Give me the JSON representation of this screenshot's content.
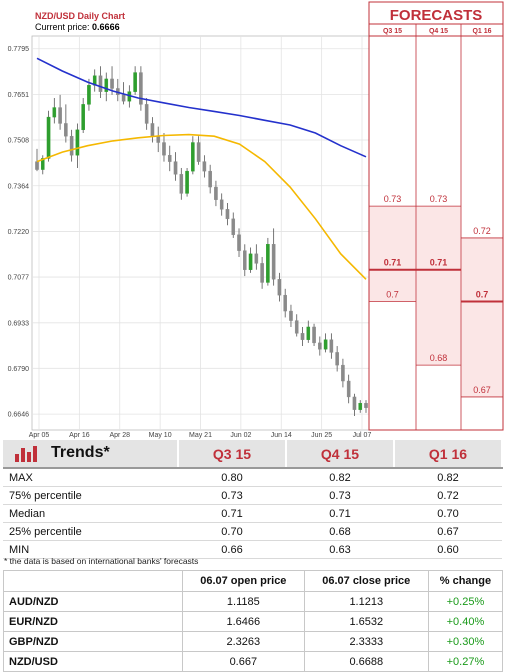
{
  "header": {
    "title": "NZD/USD Daily Chart",
    "price_label": "Current price:",
    "price_value": "0.6666"
  },
  "forecast_panel": {
    "title": "FORECASTS",
    "columns": [
      "Q3 15",
      "Q4 15",
      "Q1 16"
    ],
    "labels": [
      {
        "col": 0,
        "value": 0.73,
        "text": "0.73",
        "median": false
      },
      {
        "col": 0,
        "value": 0.71,
        "text": "0.71",
        "median": true
      },
      {
        "col": 0,
        "value": 0.7,
        "text": "0.7",
        "median": false
      },
      {
        "col": 1,
        "value": 0.73,
        "text": "0.73",
        "median": false
      },
      {
        "col": 1,
        "value": 0.71,
        "text": "0.71",
        "median": true
      },
      {
        "col": 1,
        "value": 0.68,
        "text": "0.68",
        "median": false
      },
      {
        "col": 2,
        "value": 0.72,
        "text": "0.72",
        "median": false
      },
      {
        "col": 2,
        "value": 0.7,
        "text": "0.7",
        "median": true
      },
      {
        "col": 2,
        "value": 0.67,
        "text": "0.67",
        "median": false
      }
    ]
  },
  "chart_data": {
    "type": "candlestick",
    "y_ticks": [
      "0.7795",
      "0.7651",
      "0.7508",
      "0.7364",
      "0.7220",
      "0.7077",
      "0.6933",
      "0.6790",
      "0.6646"
    ],
    "ylim": [
      0.6596,
      0.7835
    ],
    "x_ticks": [
      "Apr 05",
      "Apr 16",
      "Apr 28",
      "May 10",
      "May 21",
      "Jun 02",
      "Jun 14",
      "Jun 25",
      "Jul 07"
    ],
    "grid": true,
    "candles": [
      {
        "o": 0.744,
        "h": 0.748,
        "l": 0.741,
        "c": 0.7415
      },
      {
        "o": 0.7415,
        "h": 0.746,
        "l": 0.74,
        "c": 0.745
      },
      {
        "o": 0.745,
        "h": 0.76,
        "l": 0.744,
        "c": 0.758
      },
      {
        "o": 0.758,
        "h": 0.764,
        "l": 0.756,
        "c": 0.761
      },
      {
        "o": 0.761,
        "h": 0.765,
        "l": 0.754,
        "c": 0.756
      },
      {
        "o": 0.756,
        "h": 0.762,
        "l": 0.75,
        "c": 0.752
      },
      {
        "o": 0.752,
        "h": 0.754,
        "l": 0.744,
        "c": 0.746
      },
      {
        "o": 0.746,
        "h": 0.756,
        "l": 0.742,
        "c": 0.754
      },
      {
        "o": 0.754,
        "h": 0.764,
        "l": 0.753,
        "c": 0.762
      },
      {
        "o": 0.762,
        "h": 0.77,
        "l": 0.76,
        "c": 0.768
      },
      {
        "o": 0.768,
        "h": 0.773,
        "l": 0.766,
        "c": 0.771
      },
      {
        "o": 0.771,
        "h": 0.774,
        "l": 0.764,
        "c": 0.766
      },
      {
        "o": 0.766,
        "h": 0.772,
        "l": 0.763,
        "c": 0.77
      },
      {
        "o": 0.77,
        "h": 0.774,
        "l": 0.765,
        "c": 0.767
      },
      {
        "o": 0.767,
        "h": 0.77,
        "l": 0.763,
        "c": 0.765
      },
      {
        "o": 0.765,
        "h": 0.769,
        "l": 0.762,
        "c": 0.763
      },
      {
        "o": 0.763,
        "h": 0.768,
        "l": 0.761,
        "c": 0.766
      },
      {
        "o": 0.766,
        "h": 0.774,
        "l": 0.765,
        "c": 0.772
      },
      {
        "o": 0.772,
        "h": 0.774,
        "l": 0.76,
        "c": 0.762
      },
      {
        "o": 0.762,
        "h": 0.764,
        "l": 0.754,
        "c": 0.756
      },
      {
        "o": 0.756,
        "h": 0.758,
        "l": 0.75,
        "c": 0.752
      },
      {
        "o": 0.752,
        "h": 0.755,
        "l": 0.747,
        "c": 0.75
      },
      {
        "o": 0.75,
        "h": 0.753,
        "l": 0.744,
        "c": 0.746
      },
      {
        "o": 0.746,
        "h": 0.749,
        "l": 0.741,
        "c": 0.744
      },
      {
        "o": 0.744,
        "h": 0.747,
        "l": 0.738,
        "c": 0.74
      },
      {
        "o": 0.74,
        "h": 0.742,
        "l": 0.732,
        "c": 0.734
      },
      {
        "o": 0.734,
        "h": 0.742,
        "l": 0.733,
        "c": 0.741
      },
      {
        "o": 0.741,
        "h": 0.752,
        "l": 0.74,
        "c": 0.75
      },
      {
        "o": 0.75,
        "h": 0.752,
        "l": 0.743,
        "c": 0.744
      },
      {
        "o": 0.744,
        "h": 0.746,
        "l": 0.739,
        "c": 0.741
      },
      {
        "o": 0.741,
        "h": 0.743,
        "l": 0.734,
        "c": 0.736
      },
      {
        "o": 0.736,
        "h": 0.738,
        "l": 0.73,
        "c": 0.732
      },
      {
        "o": 0.732,
        "h": 0.734,
        "l": 0.727,
        "c": 0.729
      },
      {
        "o": 0.729,
        "h": 0.731,
        "l": 0.724,
        "c": 0.726
      },
      {
        "o": 0.726,
        "h": 0.728,
        "l": 0.72,
        "c": 0.721
      },
      {
        "o": 0.721,
        "h": 0.723,
        "l": 0.714,
        "c": 0.716
      },
      {
        "o": 0.716,
        "h": 0.718,
        "l": 0.708,
        "c": 0.71
      },
      {
        "o": 0.71,
        "h": 0.717,
        "l": 0.709,
        "c": 0.715
      },
      {
        "o": 0.715,
        "h": 0.718,
        "l": 0.71,
        "c": 0.712
      },
      {
        "o": 0.712,
        "h": 0.714,
        "l": 0.704,
        "c": 0.706
      },
      {
        "o": 0.706,
        "h": 0.72,
        "l": 0.705,
        "c": 0.718
      },
      {
        "o": 0.718,
        "h": 0.723,
        "l": 0.705,
        "c": 0.707
      },
      {
        "o": 0.707,
        "h": 0.709,
        "l": 0.7,
        "c": 0.702
      },
      {
        "o": 0.702,
        "h": 0.704,
        "l": 0.695,
        "c": 0.697
      },
      {
        "o": 0.697,
        "h": 0.699,
        "l": 0.692,
        "c": 0.694
      },
      {
        "o": 0.694,
        "h": 0.696,
        "l": 0.689,
        "c": 0.69
      },
      {
        "o": 0.69,
        "h": 0.692,
        "l": 0.686,
        "c": 0.688
      },
      {
        "o": 0.688,
        "h": 0.694,
        "l": 0.687,
        "c": 0.692
      },
      {
        "o": 0.692,
        "h": 0.693,
        "l": 0.686,
        "c": 0.687
      },
      {
        "o": 0.687,
        "h": 0.689,
        "l": 0.683,
        "c": 0.685
      },
      {
        "o": 0.685,
        "h": 0.69,
        "l": 0.684,
        "c": 0.688
      },
      {
        "o": 0.688,
        "h": 0.69,
        "l": 0.682,
        "c": 0.684
      },
      {
        "o": 0.684,
        "h": 0.686,
        "l": 0.678,
        "c": 0.68
      },
      {
        "o": 0.68,
        "h": 0.682,
        "l": 0.673,
        "c": 0.675
      },
      {
        "o": 0.675,
        "h": 0.677,
        "l": 0.668,
        "c": 0.67
      },
      {
        "o": 0.67,
        "h": 0.671,
        "l": 0.664,
        "c": 0.666
      },
      {
        "o": 0.666,
        "h": 0.669,
        "l": 0.665,
        "c": 0.668
      },
      {
        "o": 0.668,
        "h": 0.669,
        "l": 0.665,
        "c": 0.6666
      }
    ],
    "ma_blue": [
      0.7765,
      0.7725,
      0.769,
      0.7662,
      0.764,
      0.7625,
      0.761,
      0.7598,
      0.7585,
      0.757,
      0.7555,
      0.753,
      0.749,
      0.7455
    ],
    "ma_orange": [
      0.744,
      0.747,
      0.749,
      0.7505,
      0.7515,
      0.7522,
      0.7525,
      0.752,
      0.7495,
      0.744,
      0.736,
      0.726,
      0.715,
      0.707
    ],
    "colors": {
      "up": "#2e9e2e",
      "down": "#8a8a8a",
      "ma_blue": "#2431cc",
      "ma_orange": "#f5b800",
      "forecast": "#c0303a"
    }
  },
  "trends": {
    "title": "Trends*",
    "columns": [
      "Q3 15",
      "Q4 15",
      "Q1 16"
    ],
    "rows": [
      {
        "label": "MAX",
        "values": [
          "0.80",
          "0.82",
          "0.82"
        ]
      },
      {
        "label": "75% percentile",
        "values": [
          "0.73",
          "0.73",
          "0.72"
        ]
      },
      {
        "label": "Median",
        "values": [
          "0.71",
          "0.71",
          "0.70"
        ]
      },
      {
        "label": "25% percentile",
        "values": [
          "0.70",
          "0.68",
          "0.67"
        ]
      },
      {
        "label": "MIN",
        "values": [
          "0.66",
          "0.63",
          "0.60"
        ]
      }
    ],
    "footnote": "* the data is based on international banks' forecasts"
  },
  "prices": {
    "headers": [
      "",
      "06.07 open price",
      "06.07 close price",
      "% change"
    ],
    "rows": [
      {
        "pair": "AUD/NZD",
        "open": "1.1185",
        "close": "1.1213",
        "change": "+0.25%"
      },
      {
        "pair": "EUR/NZD",
        "open": "1.6466",
        "close": "1.6532",
        "change": "+0.40%"
      },
      {
        "pair": "GBP/NZD",
        "open": "2.3263",
        "close": "2.3333",
        "change": "+0.30%"
      },
      {
        "pair": "NZD/USD",
        "open": "0.667",
        "close": "0.6688",
        "change": "+0.27%"
      }
    ]
  }
}
